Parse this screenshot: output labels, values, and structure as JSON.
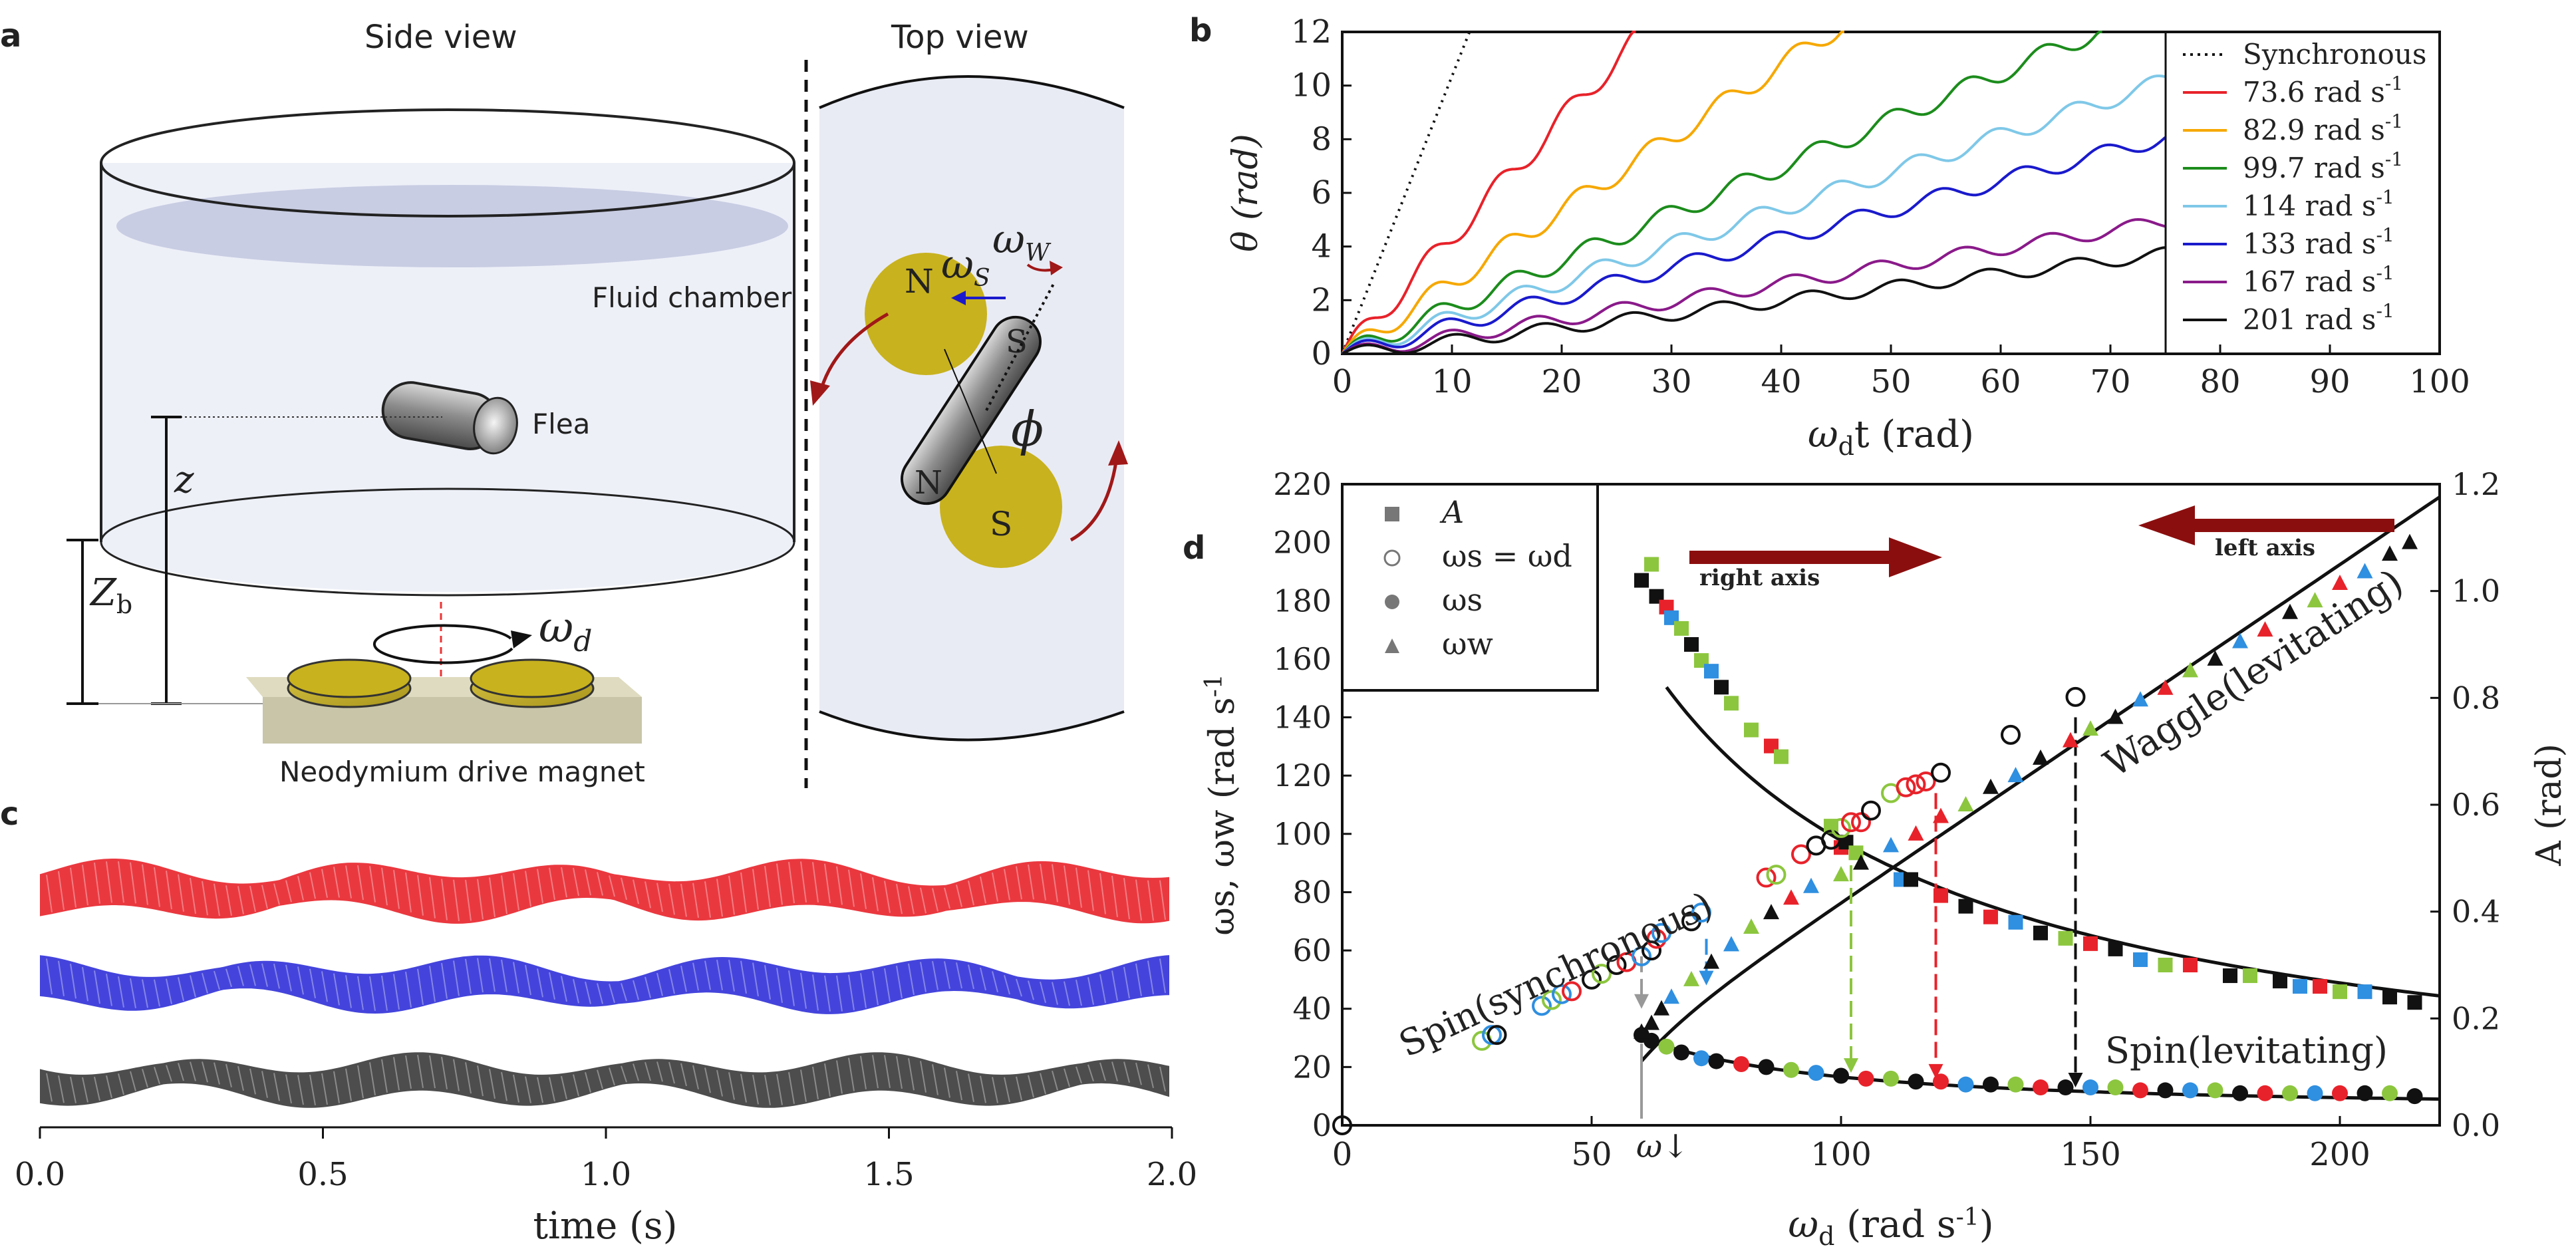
{
  "panels": {
    "a": {
      "label": "a",
      "side_title": "Side view",
      "top_title": "Top view",
      "fluid_chamber": "Fluid chamber",
      "flea": "Flea",
      "z": "z",
      "zb_main": "Z",
      "zb_sub": "b",
      "omega_d_main": "ω",
      "omega_d_sub": "d",
      "drive_magnet": "Neodymium drive magnet",
      "pole_n": "N",
      "pole_s": "S",
      "omega_s_main": "ω",
      "omega_s_sub": "S",
      "omega_w_main": "ω",
      "omega_w_sub": "W",
      "phi": "ϕ"
    },
    "b": {
      "label": "b"
    },
    "c": {
      "label": "c"
    },
    "d": {
      "label": "d"
    }
  },
  "colors": {
    "red": "#e8222a",
    "orange": "#f6a800",
    "green": "#1c8c1c",
    "lightblue": "#7fc8e8",
    "blue": "#1a1acc",
    "purple": "#8a1a8a",
    "black": "#111111",
    "lime": "#8cc63e",
    "skyblue": "#2f8fe0",
    "darkred": "#8b0e0e",
    "magnet": "#c8b21e"
  },
  "chart_data": [
    {
      "id": "b",
      "type": "line",
      "xlabel_main": "ω",
      "xlabel_sub": "d",
      "xlabel_rest": "t (rad)",
      "ylabel": "θ (rad)",
      "xlim": [
        0,
        100
      ],
      "ylim": [
        0,
        12
      ],
      "xticks": [
        0,
        10,
        20,
        30,
        40,
        50,
        60,
        70,
        80,
        90,
        100
      ],
      "yticks": [
        0,
        2,
        4,
        6,
        8,
        10,
        12
      ],
      "legend": [
        "Synchronous",
        "73.6 rad s",
        "82.9 rad s",
        "99.7 rad s",
        "114 rad s",
        "133 rad s",
        "167 rad s",
        "201 rad s"
      ],
      "legend_unit_sup": "-1",
      "series": [
        {
          "name": "73.6 rad s-1",
          "color": "red",
          "slope": 0.44,
          "amp": 0.42
        },
        {
          "name": "82.9 rad s-1",
          "color": "orange",
          "slope": 0.27,
          "amp": 0.38
        },
        {
          "name": "99.7 rad s-1",
          "color": "green",
          "slope": 0.175,
          "amp": 0.35
        },
        {
          "name": "114 rad s-1",
          "color": "lightblue",
          "slope": 0.136,
          "amp": 0.32
        },
        {
          "name": "133 rad s-1",
          "color": "blue",
          "slope": 0.108,
          "amp": 0.3
        },
        {
          "name": "167 rad s-1",
          "color": "purple",
          "slope": 0.066,
          "amp": 0.26
        },
        {
          "name": "201 rad s-1",
          "color": "black",
          "slope": 0.05,
          "amp": 0.24
        }
      ]
    },
    {
      "id": "c",
      "type": "image",
      "xlabel": "time (s)",
      "xlim": [
        0,
        2
      ],
      "xticks": [
        "0.0",
        "0.5",
        "1.0",
        "1.5",
        "2.0"
      ]
    },
    {
      "id": "d",
      "type": "scatter",
      "xlabel_main": "ω",
      "xlabel_sub": "d",
      "xlabel_rest": " (rad s",
      "xlabel_sup": "-1",
      "xlim": [
        0,
        220
      ],
      "ylim_left": [
        0,
        220
      ],
      "ylim_right": [
        0,
        1.2
      ],
      "xticks": [
        0,
        50,
        100,
        150,
        200
      ],
      "yticks_left": [
        0,
        20,
        40,
        60,
        80,
        100,
        120,
        140,
        160,
        180,
        200,
        220
      ],
      "yticks_right": [
        "0.0",
        "0.2",
        "0.4",
        "0.6",
        "0.8",
        "1.0",
        "1.2"
      ],
      "ylabel_left": "ωs, ωw (rad s",
      "ylabel_left_sup": "-1",
      "ylabel_right": "A (rad)",
      "legend": [
        {
          "marker": "square",
          "label": "A"
        },
        {
          "marker": "ring",
          "label": "ωs = ωd"
        },
        {
          "marker": "dot",
          "label": "ωs"
        },
        {
          "marker": "triangle",
          "label": "ωw"
        }
      ],
      "annotations": {
        "right_axis": "right axis",
        "left_axis": "left axis",
        "waggle": "Waggle(levitating)",
        "spin_sync": "Spin(synchronous)",
        "spin_lev": "Spin(levitating)",
        "omega_down": "ω↓"
      },
      "amplitude_points": [
        {
          "x": 60,
          "y": 1.02,
          "c": "black"
        },
        {
          "x": 62,
          "y": 1.05,
          "c": "lime"
        },
        {
          "x": 63,
          "y": 0.99,
          "c": "black"
        },
        {
          "x": 65,
          "y": 0.97,
          "c": "red"
        },
        {
          "x": 66,
          "y": 0.95,
          "c": "skyblue"
        },
        {
          "x": 68,
          "y": 0.93,
          "c": "lime"
        },
        {
          "x": 70,
          "y": 0.9,
          "c": "black"
        },
        {
          "x": 72,
          "y": 0.87,
          "c": "lime"
        },
        {
          "x": 74,
          "y": 0.85,
          "c": "skyblue"
        },
        {
          "x": 76,
          "y": 0.82,
          "c": "black"
        },
        {
          "x": 78,
          "y": 0.79,
          "c": "lime"
        },
        {
          "x": 82,
          "y": 0.74,
          "c": "lime"
        },
        {
          "x": 86,
          "y": 0.71,
          "c": "red"
        },
        {
          "x": 88,
          "y": 0.69,
          "c": "lime"
        },
        {
          "x": 98,
          "y": 0.56,
          "c": "lime"
        },
        {
          "x": 100,
          "y": 0.52,
          "c": "red"
        },
        {
          "x": 101,
          "y": 0.53,
          "c": "black"
        },
        {
          "x": 103,
          "y": 0.51,
          "c": "lime"
        },
        {
          "x": 112,
          "y": 0.46,
          "c": "skyblue"
        },
        {
          "x": 114,
          "y": 0.46,
          "c": "black"
        },
        {
          "x": 120,
          "y": 0.43,
          "c": "red"
        },
        {
          "x": 125,
          "y": 0.41,
          "c": "black"
        },
        {
          "x": 130,
          "y": 0.39,
          "c": "red"
        },
        {
          "x": 135,
          "y": 0.38,
          "c": "skyblue"
        },
        {
          "x": 140,
          "y": 0.36,
          "c": "black"
        },
        {
          "x": 145,
          "y": 0.35,
          "c": "lime"
        },
        {
          "x": 150,
          "y": 0.34,
          "c": "red"
        },
        {
          "x": 155,
          "y": 0.33,
          "c": "black"
        },
        {
          "x": 160,
          "y": 0.31,
          "c": "skyblue"
        },
        {
          "x": 165,
          "y": 0.3,
          "c": "lime"
        },
        {
          "x": 170,
          "y": 0.3,
          "c": "red"
        },
        {
          "x": 178,
          "y": 0.28,
          "c": "black"
        },
        {
          "x": 182,
          "y": 0.28,
          "c": "lime"
        },
        {
          "x": 188,
          "y": 0.27,
          "c": "black"
        },
        {
          "x": 192,
          "y": 0.26,
          "c": "skyblue"
        },
        {
          "x": 196,
          "y": 0.26,
          "c": "red"
        },
        {
          "x": 200,
          "y": 0.25,
          "c": "lime"
        },
        {
          "x": 205,
          "y": 0.25,
          "c": "skyblue"
        },
        {
          "x": 210,
          "y": 0.24,
          "c": "black"
        },
        {
          "x": 215,
          "y": 0.23,
          "c": "black"
        }
      ],
      "sync_points": [
        {
          "x": 28,
          "y": 29,
          "c": "lime"
        },
        {
          "x": 30,
          "y": 31,
          "c": "skyblue"
        },
        {
          "x": 31,
          "y": 31,
          "c": "black"
        },
        {
          "x": 40,
          "y": 41,
          "c": "skyblue"
        },
        {
          "x": 42,
          "y": 43,
          "c": "lime"
        },
        {
          "x": 44,
          "y": 45,
          "c": "skyblue"
        },
        {
          "x": 46,
          "y": 46,
          "c": "red"
        },
        {
          "x": 50,
          "y": 50,
          "c": "black"
        },
        {
          "x": 52,
          "y": 52,
          "c": "lime"
        },
        {
          "x": 55,
          "y": 55,
          "c": "black"
        },
        {
          "x": 57,
          "y": 56,
          "c": "red"
        },
        {
          "x": 60,
          "y": 58,
          "c": "skyblue"
        },
        {
          "x": 62,
          "y": 60,
          "c": "black"
        },
        {
          "x": 63,
          "y": 64,
          "c": "red"
        },
        {
          "x": 64,
          "y": 66,
          "c": "skyblue"
        },
        {
          "x": 70,
          "y": 70,
          "c": "black"
        },
        {
          "x": 72,
          "y": 73,
          "c": "skyblue"
        },
        {
          "x": 85,
          "y": 85,
          "c": "red"
        },
        {
          "x": 87,
          "y": 86,
          "c": "lime"
        },
        {
          "x": 92,
          "y": 93,
          "c": "red"
        },
        {
          "x": 95,
          "y": 96,
          "c": "black"
        },
        {
          "x": 98,
          "y": 98,
          "c": "black"
        },
        {
          "x": 100,
          "y": 102,
          "c": "lime"
        },
        {
          "x": 102,
          "y": 104,
          "c": "red"
        },
        {
          "x": 104,
          "y": 104,
          "c": "red"
        },
        {
          "x": 106,
          "y": 108,
          "c": "black"
        },
        {
          "x": 110,
          "y": 114,
          "c": "lime"
        },
        {
          "x": 113,
          "y": 116,
          "c": "red"
        },
        {
          "x": 115,
          "y": 117,
          "c": "red"
        },
        {
          "x": 117,
          "y": 118,
          "c": "red"
        },
        {
          "x": 120,
          "y": 121,
          "c": "black"
        },
        {
          "x": 134,
          "y": 134,
          "c": "black"
        },
        {
          "x": 147,
          "y": 147,
          "c": "black"
        }
      ],
      "spin_points": [
        {
          "x": 60,
          "y": 31,
          "c": "black"
        },
        {
          "x": 62,
          "y": 29,
          "c": "black"
        },
        {
          "x": 65,
          "y": 27,
          "c": "lime"
        },
        {
          "x": 68,
          "y": 25,
          "c": "black"
        },
        {
          "x": 72,
          "y": 23,
          "c": "skyblue"
        },
        {
          "x": 75,
          "y": 22,
          "c": "black"
        },
        {
          "x": 80,
          "y": 21,
          "c": "red"
        },
        {
          "x": 85,
          "y": 20,
          "c": "black"
        },
        {
          "x": 90,
          "y": 19,
          "c": "lime"
        },
        {
          "x": 95,
          "y": 18,
          "c": "skyblue"
        },
        {
          "x": 100,
          "y": 17,
          "c": "black"
        },
        {
          "x": 105,
          "y": 16,
          "c": "red"
        },
        {
          "x": 110,
          "y": 16,
          "c": "lime"
        },
        {
          "x": 115,
          "y": 15,
          "c": "black"
        },
        {
          "x": 120,
          "y": 15,
          "c": "red"
        },
        {
          "x": 125,
          "y": 14,
          "c": "skyblue"
        },
        {
          "x": 130,
          "y": 14,
          "c": "black"
        },
        {
          "x": 135,
          "y": 14,
          "c": "lime"
        },
        {
          "x": 140,
          "y": 13,
          "c": "red"
        },
        {
          "x": 145,
          "y": 13,
          "c": "black"
        },
        {
          "x": 150,
          "y": 13,
          "c": "skyblue"
        },
        {
          "x": 155,
          "y": 13,
          "c": "lime"
        },
        {
          "x": 160,
          "y": 12,
          "c": "red"
        },
        {
          "x": 165,
          "y": 12,
          "c": "black"
        },
        {
          "x": 170,
          "y": 12,
          "c": "skyblue"
        },
        {
          "x": 175,
          "y": 12,
          "c": "lime"
        },
        {
          "x": 180,
          "y": 11,
          "c": "black"
        },
        {
          "x": 185,
          "y": 11,
          "c": "red"
        },
        {
          "x": 190,
          "y": 11,
          "c": "lime"
        },
        {
          "x": 195,
          "y": 11,
          "c": "skyblue"
        },
        {
          "x": 200,
          "y": 11,
          "c": "red"
        },
        {
          "x": 205,
          "y": 11,
          "c": "black"
        },
        {
          "x": 210,
          "y": 11,
          "c": "lime"
        },
        {
          "x": 215,
          "y": 10,
          "c": "black"
        }
      ],
      "waggle_points": [
        {
          "x": 60,
          "y": 32,
          "c": "black"
        },
        {
          "x": 62,
          "y": 35,
          "c": "black"
        },
        {
          "x": 64,
          "y": 40,
          "c": "black"
        },
        {
          "x": 66,
          "y": 44,
          "c": "skyblue"
        },
        {
          "x": 70,
          "y": 50,
          "c": "lime"
        },
        {
          "x": 74,
          "y": 56,
          "c": "black"
        },
        {
          "x": 78,
          "y": 62,
          "c": "skyblue"
        },
        {
          "x": 82,
          "y": 68,
          "c": "lime"
        },
        {
          "x": 86,
          "y": 73,
          "c": "black"
        },
        {
          "x": 90,
          "y": 78,
          "c": "red"
        },
        {
          "x": 94,
          "y": 82,
          "c": "skyblue"
        },
        {
          "x": 100,
          "y": 86,
          "c": "lime"
        },
        {
          "x": 104,
          "y": 90,
          "c": "black"
        },
        {
          "x": 110,
          "y": 96,
          "c": "skyblue"
        },
        {
          "x": 115,
          "y": 100,
          "c": "red"
        },
        {
          "x": 120,
          "y": 106,
          "c": "red"
        },
        {
          "x": 125,
          "y": 110,
          "c": "lime"
        },
        {
          "x": 130,
          "y": 116,
          "c": "black"
        },
        {
          "x": 135,
          "y": 120,
          "c": "skyblue"
        },
        {
          "x": 140,
          "y": 126,
          "c": "black"
        },
        {
          "x": 146,
          "y": 132,
          "c": "red"
        },
        {
          "x": 150,
          "y": 136,
          "c": "lime"
        },
        {
          "x": 155,
          "y": 140,
          "c": "black"
        },
        {
          "x": 160,
          "y": 146,
          "c": "skyblue"
        },
        {
          "x": 165,
          "y": 150,
          "c": "red"
        },
        {
          "x": 170,
          "y": 156,
          "c": "lime"
        },
        {
          "x": 175,
          "y": 160,
          "c": "black"
        },
        {
          "x": 180,
          "y": 166,
          "c": "skyblue"
        },
        {
          "x": 185,
          "y": 170,
          "c": "red"
        },
        {
          "x": 190,
          "y": 176,
          "c": "black"
        },
        {
          "x": 195,
          "y": 180,
          "c": "lime"
        },
        {
          "x": 200,
          "y": 186,
          "c": "red"
        },
        {
          "x": 205,
          "y": 190,
          "c": "skyblue"
        },
        {
          "x": 210,
          "y": 196,
          "c": "black"
        },
        {
          "x": 214,
          "y": 200,
          "c": "black"
        }
      ],
      "transition_arrows": [
        {
          "x": 60,
          "y_top": 58,
          "y_bottom": 40,
          "c": "gray"
        },
        {
          "x": 73,
          "y_top": 64,
          "y_bottom": 48,
          "c": "skyblue"
        },
        {
          "x": 102,
          "y_top": 97,
          "y_bottom": 18,
          "c": "lime"
        },
        {
          "x": 119,
          "y_top": 114,
          "y_bottom": 16,
          "c": "red"
        },
        {
          "x": 147,
          "y_top": 140,
          "y_bottom": 13,
          "c": "black"
        }
      ]
    }
  ]
}
